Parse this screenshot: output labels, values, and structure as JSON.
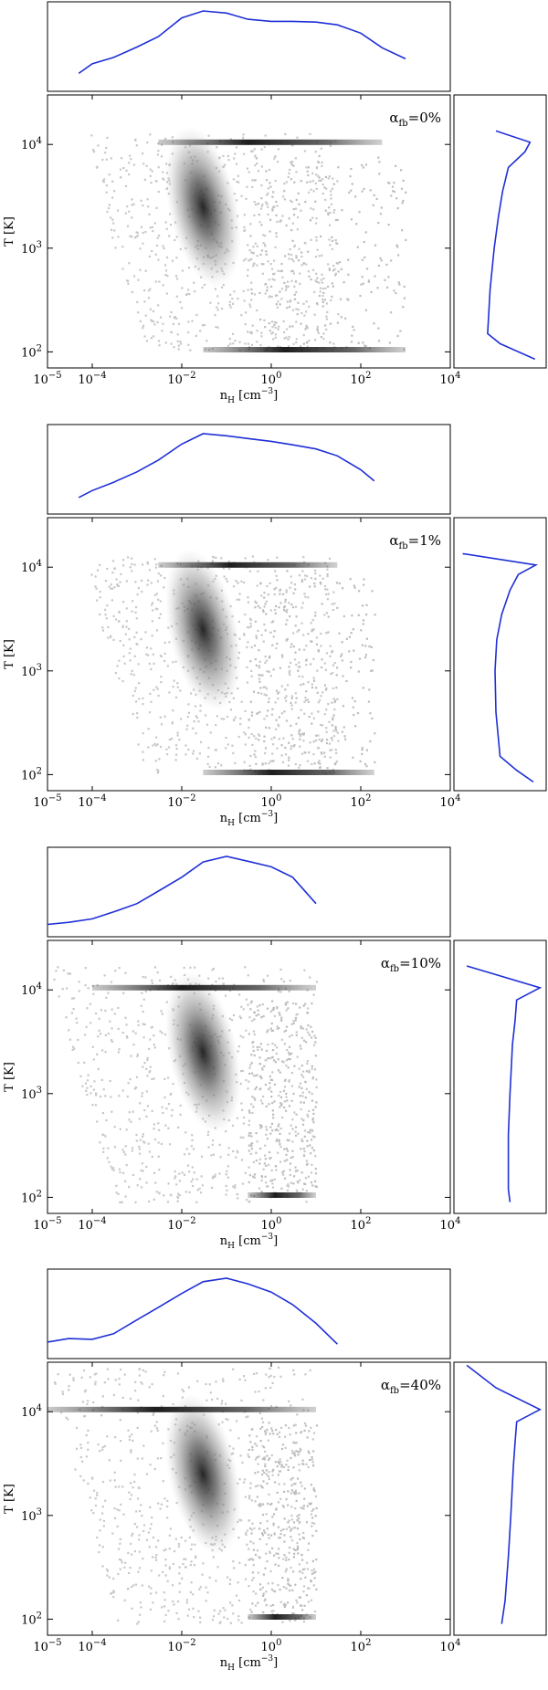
{
  "chart_data": [
    {
      "type": "scatter",
      "panel_label": "α_fb=0%",
      "xlabel": "n_H [cm^-3]",
      "ylabel": "T [K]",
      "x_scale": "log",
      "y_scale": "log",
      "xlim": [
        1e-05,
        10000.0
      ],
      "ylim": [
        70,
        30000
      ],
      "x_tick_labels": [
        "10^-5",
        "10^-4",
        "10^-2",
        "10^0",
        "10^2",
        "10^4"
      ],
      "y_tick_labels": [
        "10^2",
        "10^3",
        "10^4"
      ],
      "density_profile": {
        "x": [
          5e-05,
          0.0001,
          0.0003,
          0.001,
          0.003,
          0.01,
          0.03,
          0.1,
          0.3,
          1,
          3,
          10,
          30,
          100,
          300,
          1000
        ],
        "y": [
          0.1,
          0.24,
          0.33,
          0.48,
          0.63,
          0.9,
          1.0,
          0.97,
          0.88,
          0.85,
          0.85,
          0.84,
          0.8,
          0.68,
          0.47,
          0.31
        ]
      },
      "temperature_profile": {
        "x": [
          0.45,
          0.86,
          0.8,
          0.6,
          0.53,
          0.48,
          0.43,
          0.38,
          0.35,
          0.5,
          0.92
        ],
        "y": [
          13500,
          10500,
          8500,
          6000,
          3500,
          2000,
          1000,
          400,
          150,
          120,
          85
        ]
      },
      "features": {
        "band_10e4": {
          "T": 10500,
          "x": [
            0.003,
            300
          ]
        },
        "band_10e2": {
          "T": 105,
          "x": [
            0.03,
            1000
          ]
        },
        "lobe_main": {
          "x": [
            5e-05,
            30
          ],
          "T": [
            105,
            13000
          ]
        },
        "lobe_right": {
          "x": [
            0.3,
            1000
          ],
          "T": [
            105,
            8000
          ]
        }
      }
    },
    {
      "type": "scatter",
      "panel_label": "α_fb=1%",
      "xlabel": "n_H [cm^-3]",
      "ylabel": "T [K]",
      "x_scale": "log",
      "y_scale": "log",
      "xlim": [
        1e-05,
        10000.0
      ],
      "ylim": [
        70,
        30000
      ],
      "x_tick_labels": [
        "10^-5",
        "10^-4",
        "10^-2",
        "10^0",
        "10^2",
        "10^4"
      ],
      "y_tick_labels": [
        "10^2",
        "10^3",
        "10^4"
      ],
      "density_profile": {
        "x": [
          5e-05,
          0.0001,
          0.0003,
          0.001,
          0.003,
          0.01,
          0.03,
          0.1,
          0.3,
          1,
          3,
          10,
          30,
          100,
          200
        ],
        "y": [
          0.08,
          0.18,
          0.3,
          0.45,
          0.62,
          0.85,
          1.0,
          0.97,
          0.93,
          0.89,
          0.84,
          0.78,
          0.68,
          0.48,
          0.32
        ]
      },
      "temperature_profile": {
        "x": [
          0.05,
          0.93,
          0.72,
          0.62,
          0.52,
          0.46,
          0.44,
          0.45,
          0.5,
          0.7,
          0.9
        ],
        "y": [
          13500,
          10500,
          8500,
          6000,
          3500,
          2000,
          1000,
          400,
          150,
          110,
          85
        ]
      },
      "features": {
        "band_10e4": {
          "T": 10500,
          "x": [
            0.003,
            30
          ]
        },
        "band_10e2": {
          "T": 105,
          "x": [
            0.03,
            200
          ]
        },
        "lobe_main": {
          "x": [
            5e-05,
            30
          ],
          "T": [
            105,
            13000
          ]
        },
        "lobe_right": {
          "x": [
            0.3,
            200
          ],
          "T": [
            105,
            8000
          ]
        }
      }
    },
    {
      "type": "scatter",
      "panel_label": "α_fb=10%",
      "xlabel": "n_H [cm^-3]",
      "ylabel": "T [K]",
      "x_scale": "log",
      "y_scale": "log",
      "xlim": [
        1e-05,
        10000.0
      ],
      "ylim": [
        70,
        30000
      ],
      "x_tick_labels": [
        "10^-5",
        "10^-4",
        "10^-2",
        "10^0",
        "10^2",
        "10^4"
      ],
      "y_tick_labels": [
        "10^2",
        "10^3",
        "10^4"
      ],
      "density_profile": {
        "x": [
          1e-05,
          3e-05,
          0.0001,
          0.0003,
          0.001,
          0.003,
          0.01,
          0.03,
          0.1,
          0.3,
          1,
          3,
          10
        ],
        "y": [
          0.02,
          0.05,
          0.1,
          0.2,
          0.32,
          0.5,
          0.7,
          0.92,
          1.0,
          0.93,
          0.85,
          0.7,
          0.32
        ]
      },
      "temperature_profile": {
        "x": [
          0.1,
          0.98,
          0.7,
          0.68,
          0.65,
          0.62,
          0.6,
          0.6,
          0.62
        ],
        "y": [
          17000,
          10500,
          8000,
          5000,
          3000,
          1000,
          400,
          120,
          90
        ]
      },
      "features": {
        "band_10e4": {
          "T": 10500,
          "x": [
            0.0001,
            10
          ]
        },
        "band_10e2": {
          "T": 105,
          "x": [
            0.3,
            10
          ]
        },
        "lobe_main": {
          "x": [
            1e-05,
            10
          ],
          "T": [
            90,
            17000
          ]
        },
        "lobe_right": {
          "x": [
            0.3,
            10
          ],
          "T": [
            105,
            8000
          ]
        }
      }
    },
    {
      "type": "scatter",
      "panel_label": "α_fb=40%",
      "xlabel": "n_H [cm^-3]",
      "ylabel": "T [K]",
      "x_scale": "log",
      "y_scale": "log",
      "xlim": [
        1e-05,
        10000.0
      ],
      "ylim": [
        70,
        30000
      ],
      "x_tick_labels": [
        "10^-5",
        "10^-4",
        "10^-2",
        "10^0",
        "10^2",
        "10^4"
      ],
      "y_tick_labels": [
        "10^2",
        "10^3",
        "10^4"
      ],
      "density_profile": {
        "x": [
          1e-05,
          3e-05,
          0.0001,
          0.0003,
          0.001,
          0.003,
          0.01,
          0.03,
          0.1,
          0.3,
          1,
          3,
          10,
          30
        ],
        "y": [
          0.08,
          0.13,
          0.12,
          0.2,
          0.4,
          0.58,
          0.78,
          0.95,
          1.0,
          0.92,
          0.8,
          0.62,
          0.35,
          0.05
        ]
      },
      "temperature_profile": {
        "x": [
          0.1,
          0.45,
          0.98,
          0.7,
          0.68,
          0.66,
          0.63,
          0.6,
          0.56,
          0.52
        ],
        "y": [
          28000,
          17000,
          10500,
          8000,
          5000,
          3000,
          1000,
          400,
          150,
          90
        ]
      },
      "features": {
        "band_10e4": {
          "T": 10500,
          "x": [
            1e-05,
            10
          ]
        },
        "band_10e2": {
          "T": 105,
          "x": [
            0.3,
            10
          ]
        },
        "lobe_main": {
          "x": [
            1e-05,
            10
          ],
          "T": [
            90,
            28000
          ]
        },
        "lobe_right": {
          "x": [
            0.3,
            10
          ],
          "T": [
            105,
            8000
          ]
        }
      }
    }
  ]
}
